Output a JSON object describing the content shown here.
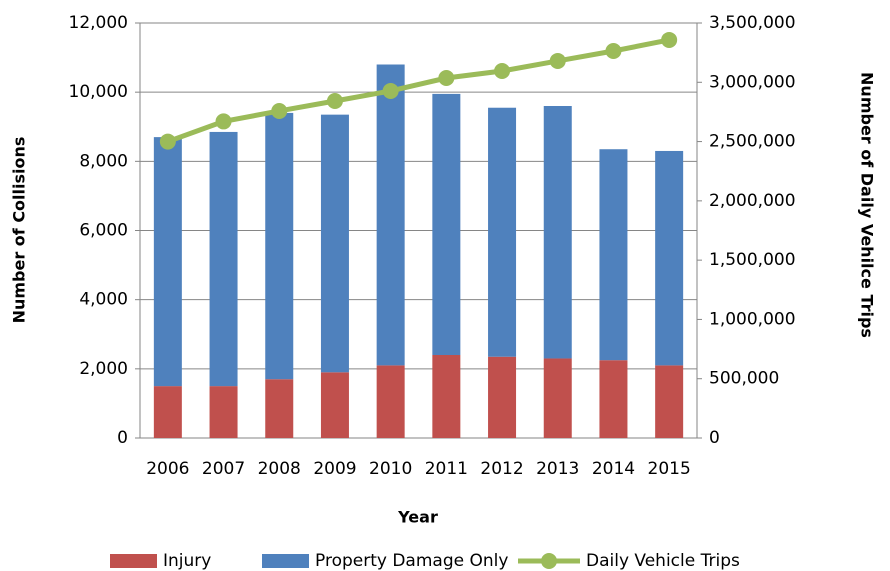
{
  "chart_data": {
    "type": "bar",
    "x_label": "Year",
    "y_label": "Number of Collisions",
    "y2_label": "Number of Daily Vehilce Trips",
    "categories": [
      "2006",
      "2007",
      "2008",
      "2009",
      "2010",
      "2011",
      "2012",
      "2013",
      "2014",
      "2015"
    ],
    "stacked": true,
    "series": [
      {
        "name": "Injury",
        "color": "#c0504d",
        "type": "bar",
        "values": [
          1500,
          1500,
          1700,
          1900,
          2100,
          2400,
          2350,
          2300,
          2250,
          2100
        ]
      },
      {
        "name": "Property Damage Only",
        "color": "#4f81bd",
        "type": "bar",
        "values": [
          7200,
          7350,
          7700,
          7450,
          8700,
          7550,
          7200,
          7300,
          6100,
          6200
        ]
      },
      {
        "name": "Daily Vehicle Trips",
        "color": "#9bbb59",
        "type": "line",
        "axis": "y2",
        "values": [
          2500000,
          2670000,
          2758000,
          2842000,
          2927000,
          3036000,
          3095000,
          3180000,
          3264000,
          3357000
        ]
      }
    ],
    "ylim": [
      0,
      12000
    ],
    "yticks": [
      0,
      {
        "value": 2000,
        "label": "2,000"
      },
      {
        "value": 4000,
        "label": "4,000"
      },
      {
        "value": 6000,
        "label": "6,000"
      },
      {
        "value": 8000,
        "label": "8,000"
      },
      {
        "value": 10000,
        "label": "10,000"
      },
      {
        "value": 12000,
        "label": "12,000"
      }
    ],
    "y2lim": [
      0,
      3500000
    ],
    "y2ticks": [
      0,
      {
        "value": 500000,
        "label": "500,000"
      },
      {
        "value": 1000000,
        "label": "1,000,000"
      },
      {
        "value": 1500000,
        "label": "1,500,000"
      },
      {
        "value": 2000000,
        "label": "2,000,000"
      },
      {
        "value": 2500000,
        "label": "2,500,000"
      },
      {
        "value": 3000000,
        "label": "3,000,000"
      },
      {
        "value": 3500000,
        "label": "3,500,000"
      }
    ],
    "grid": true,
    "legend": "bottom"
  }
}
